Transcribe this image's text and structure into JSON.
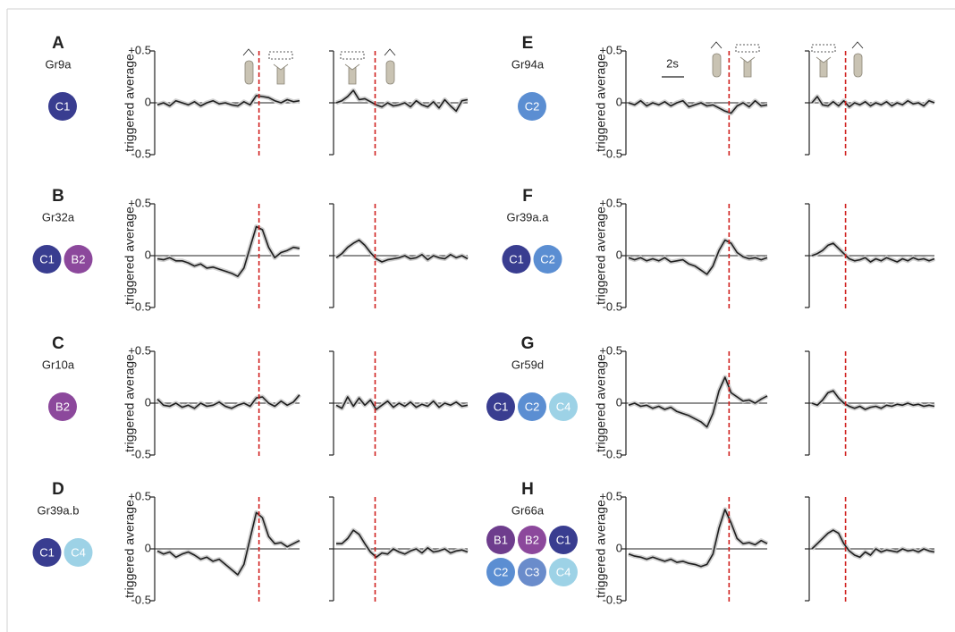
{
  "scale_bar": "2s",
  "chart_data": [
    {
      "type": "line",
      "panel": "A",
      "gene": "Gr9a",
      "neurons": [
        {
          "label": "C1",
          "color": "#393d90"
        }
      ],
      "ylabel": "triggered average",
      "ylim": [
        -0.5,
        0.5
      ],
      "yticks": [
        {
          "value": 0.5,
          "label": "+0.5"
        },
        0,
        -0.5
      ],
      "line_color": "#1e1e1e",
      "event_color": "#d0201e",
      "plots": [
        {
          "values": [
            -0.02,
            0,
            -0.03,
            0.02,
            0,
            -0.02,
            0.01,
            -0.03,
            0,
            0.02,
            -0.01,
            0,
            -0.02,
            -0.03,
            0.01,
            -0.02,
            0.07,
            0.06,
            0.05,
            0.02,
            0,
            0.03,
            0.01,
            0.02
          ]
        },
        {
          "values": [
            0,
            0.02,
            0.06,
            0.12,
            0.03,
            0.04,
            0.01,
            -0.02,
            -0.04,
            0,
            -0.03,
            -0.02,
            0,
            -0.04,
            0.02,
            -0.02,
            -0.04,
            0.01,
            -0.05,
            0.03,
            -0.03,
            -0.08,
            0.02,
            0.03
          ]
        }
      ]
    },
    {
      "type": "line",
      "panel": "B",
      "gene": "Gr32a",
      "neurons": [
        {
          "label": "C1",
          "color": "#393d90"
        },
        {
          "label": "B2",
          "color": "#8c489c"
        }
      ],
      "ylabel": "triggered average",
      "ylim": [
        -0.5,
        0.5
      ],
      "yticks": [
        {
          "value": 0.5,
          "label": "+0.5"
        },
        0,
        -0.5
      ],
      "line_color": "#1e1e1e",
      "event_color": "#d0201e",
      "plots": [
        {
          "values": [
            -0.03,
            -0.04,
            -0.02,
            -0.05,
            -0.05,
            -0.07,
            -0.1,
            -0.08,
            -0.12,
            -0.11,
            -0.13,
            -0.15,
            -0.17,
            -0.2,
            -0.12,
            0.08,
            0.28,
            0.25,
            0.08,
            -0.02,
            0.03,
            0.05,
            0.08,
            0.07
          ]
        },
        {
          "values": [
            -0.02,
            0.02,
            0.08,
            0.12,
            0.15,
            0.1,
            0.03,
            -0.03,
            -0.06,
            -0.04,
            -0.03,
            -0.02,
            0,
            -0.03,
            -0.02,
            0.01,
            -0.04,
            0,
            -0.02,
            -0.03,
            0.01,
            -0.02,
            0,
            -0.03
          ]
        }
      ]
    },
    {
      "type": "line",
      "panel": "C",
      "gene": "Gr10a",
      "neurons": [
        {
          "label": "B2",
          "color": "#8c489c"
        }
      ],
      "ylabel": "triggered average",
      "ylim": [
        -0.5,
        0.5
      ],
      "yticks": [
        {
          "value": 0.5,
          "label": "+0.5"
        },
        0,
        -0.5
      ],
      "line_color": "#1e1e1e",
      "event_color": "#d0201e",
      "plots": [
        {
          "values": [
            0.04,
            -0.02,
            -0.03,
            0,
            -0.04,
            -0.02,
            -0.05,
            0,
            -0.03,
            -0.02,
            0.01,
            -0.03,
            -0.05,
            -0.02,
            0,
            -0.03,
            0.05,
            0.06,
            0,
            -0.03,
            0.02,
            -0.02,
            0.01,
            0.08
          ]
        },
        {
          "values": [
            -0.02,
            -0.05,
            0.06,
            -0.03,
            0.05,
            -0.02,
            0.03,
            -0.06,
            -0.02,
            0.02,
            -0.04,
            0,
            -0.03,
            0.01,
            -0.04,
            -0.01,
            -0.03,
            0.02,
            -0.04,
            0,
            -0.02,
            0.01,
            -0.03,
            -0.02
          ]
        }
      ]
    },
    {
      "type": "line",
      "panel": "D",
      "gene": "Gr39a.b",
      "neurons": [
        {
          "label": "C1",
          "color": "#393d90"
        },
        {
          "label": "C4",
          "color": "#9dd2e6"
        }
      ],
      "ylabel": "triggered average",
      "ylim": [
        -0.5,
        0.5
      ],
      "yticks": [
        {
          "value": 0.5,
          "label": "+0.5"
        },
        0,
        -0.5
      ],
      "line_color": "#1e1e1e",
      "event_color": "#d0201e",
      "plots": [
        {
          "values": [
            -0.02,
            -0.05,
            -0.03,
            -0.08,
            -0.05,
            -0.03,
            -0.06,
            -0.1,
            -0.08,
            -0.12,
            -0.1,
            -0.15,
            -0.2,
            -0.25,
            -0.15,
            0.1,
            0.35,
            0.3,
            0.12,
            0.05,
            0.06,
            0.02,
            0.05,
            0.08
          ]
        },
        {
          "values": [
            0.05,
            0.05,
            0.1,
            0.18,
            0.14,
            0.05,
            -0.03,
            -0.08,
            -0.04,
            -0.05,
            0,
            -0.03,
            -0.05,
            -0.02,
            0,
            -0.04,
            0.01,
            -0.03,
            -0.02,
            0,
            -0.04,
            -0.02,
            -0.01,
            -0.03
          ]
        }
      ]
    },
    {
      "type": "line",
      "panel": "E",
      "gene": "Gr94a",
      "neurons": [
        {
          "label": "C2",
          "color": "#5b8ed2"
        }
      ],
      "ylabel": "triggered average",
      "ylim": [
        -0.5,
        0.5
      ],
      "yticks": [
        {
          "value": 0.5,
          "label": "+0.5"
        },
        0,
        -0.5
      ],
      "line_color": "#1e1e1e",
      "event_color": "#d0201e",
      "plots": [
        {
          "values": [
            0,
            -0.02,
            0.02,
            -0.03,
            0,
            -0.02,
            0.01,
            -0.03,
            0,
            0.02,
            -0.04,
            -0.02,
            0,
            -0.03,
            -0.02,
            -0.05,
            -0.08,
            -0.1,
            -0.03,
            0,
            -0.04,
            0.02,
            -0.03,
            -0.02
          ]
        },
        {
          "values": [
            0,
            0.06,
            -0.02,
            -0.03,
            0.01,
            -0.03,
            0.02,
            -0.04,
            0,
            -0.02,
            0.01,
            -0.03,
            0,
            -0.02,
            0.01,
            -0.03,
            0,
            -0.02,
            0.02,
            -0.01,
            0,
            -0.03,
            0.02,
            0
          ]
        }
      ]
    },
    {
      "type": "line",
      "panel": "F",
      "gene": "Gr39a.a",
      "neurons": [
        {
          "label": "C1",
          "color": "#393d90"
        },
        {
          "label": "C2",
          "color": "#5b8ed2"
        }
      ],
      "ylabel": "triggered average",
      "ylim": [
        -0.5,
        0.5
      ],
      "yticks": [
        {
          "value": 0.5,
          "label": "+0.5"
        },
        0,
        -0.5
      ],
      "line_color": "#1e1e1e",
      "event_color": "#d0201e",
      "plots": [
        {
          "values": [
            -0.02,
            -0.04,
            -0.02,
            -0.05,
            -0.03,
            -0.05,
            -0.02,
            -0.06,
            -0.05,
            -0.04,
            -0.08,
            -0.1,
            -0.14,
            -0.18,
            -0.1,
            0.05,
            0.15,
            0.12,
            0.03,
            -0.01,
            -0.03,
            -0.02,
            -0.04,
            -0.02
          ]
        },
        {
          "values": [
            0,
            0.02,
            0.05,
            0.1,
            0.12,
            0.07,
            0.02,
            -0.03,
            -0.05,
            -0.04,
            -0.02,
            -0.06,
            -0.03,
            -0.05,
            -0.02,
            -0.04,
            -0.06,
            -0.03,
            -0.05,
            -0.02,
            -0.04,
            -0.03,
            -0.05,
            -0.03
          ]
        }
      ]
    },
    {
      "type": "line",
      "panel": "G",
      "gene": "Gr59d",
      "neurons": [
        {
          "label": "C1",
          "color": "#393d90"
        },
        {
          "label": "C2",
          "color": "#5b8ed2"
        },
        {
          "label": "C4",
          "color": "#9dd2e6"
        }
      ],
      "ylabel": "triggered average",
      "ylim": [
        -0.5,
        0.5
      ],
      "yticks": [
        {
          "value": 0.5,
          "label": "+0.5"
        },
        0,
        -0.5
      ],
      "line_color": "#1e1e1e",
      "event_color": "#d0201e",
      "plots": [
        {
          "values": [
            -0.02,
            0,
            -0.03,
            -0.02,
            -0.05,
            -0.03,
            -0.06,
            -0.04,
            -0.08,
            -0.1,
            -0.12,
            -0.15,
            -0.18,
            -0.23,
            -0.1,
            0.12,
            0.25,
            0.1,
            0.06,
            0.02,
            0.03,
            0,
            0.04,
            0.07
          ]
        },
        {
          "values": [
            0,
            -0.02,
            0.03,
            0.1,
            0.12,
            0.05,
            0,
            -0.03,
            -0.05,
            -0.03,
            -0.06,
            -0.04,
            -0.03,
            -0.05,
            -0.02,
            -0.03,
            -0.01,
            -0.02,
            0,
            -0.02,
            -0.01,
            -0.03,
            -0.02,
            -0.03
          ]
        }
      ]
    },
    {
      "type": "line",
      "panel": "H",
      "gene": "Gr66a",
      "neurons": [
        {
          "label": "B1",
          "color": "#6e3d8d"
        },
        {
          "label": "B2",
          "color": "#8c489c"
        },
        {
          "label": "C1",
          "color": "#393d90"
        },
        {
          "label": "C2",
          "color": "#5b8ed2"
        },
        {
          "label": "C3",
          "color": "#6a8ccb"
        },
        {
          "label": "C4",
          "color": "#9dd2e6"
        }
      ],
      "ylabel": "triggered average",
      "ylim": [
        -0.5,
        0.5
      ],
      "yticks": [
        {
          "value": 0.5,
          "label": "+0.5"
        },
        0,
        -0.5
      ],
      "line_color": "#1e1e1e",
      "event_color": "#d0201e",
      "plots": [
        {
          "values": [
            -0.05,
            -0.07,
            -0.08,
            -0.1,
            -0.08,
            -0.1,
            -0.12,
            -0.1,
            -0.13,
            -0.12,
            -0.14,
            -0.15,
            -0.17,
            -0.15,
            -0.05,
            0.2,
            0.38,
            0.25,
            0.1,
            0.05,
            0.06,
            0.04,
            0.08,
            0.05
          ]
        },
        {
          "values": [
            0,
            0.05,
            0.1,
            0.15,
            0.18,
            0.15,
            0.05,
            -0.02,
            -0.06,
            -0.08,
            -0.03,
            -0.06,
            0,
            -0.03,
            -0.01,
            -0.02,
            -0.03,
            0,
            -0.02,
            -0.01,
            -0.03,
            0,
            -0.02,
            -0.03
          ]
        }
      ]
    }
  ]
}
